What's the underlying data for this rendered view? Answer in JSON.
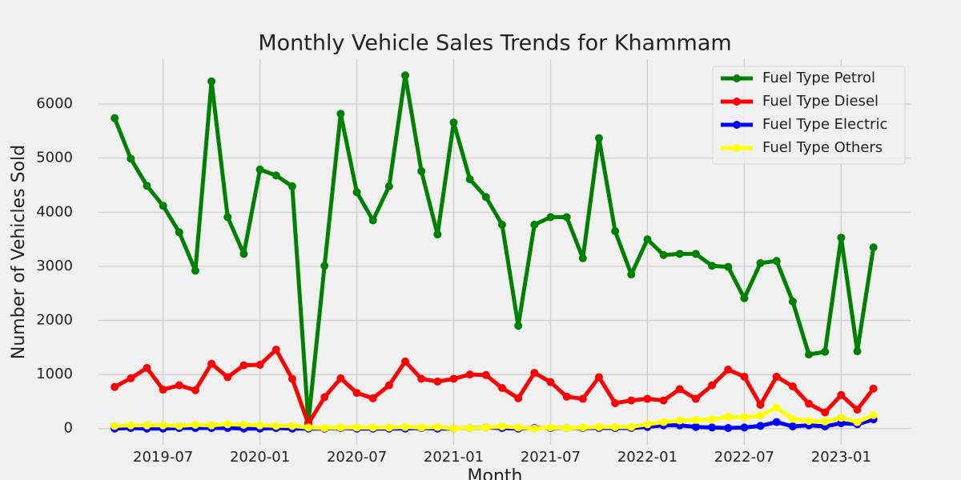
{
  "chart_data": {
    "type": "line",
    "title": "Monthly Vehicle Sales Trends for Khammam",
    "x_label": "Month",
    "y_label": "Number of Vehicles Sold",
    "x": [
      "2019-04",
      "2019-05",
      "2019-06",
      "2019-07",
      "2019-08",
      "2019-09",
      "2019-10",
      "2019-11",
      "2019-12",
      "2020-01",
      "2020-02",
      "2020-03",
      "2020-04",
      "2020-05",
      "2020-06",
      "2020-07",
      "2020-08",
      "2020-09",
      "2020-10",
      "2020-11",
      "2020-12",
      "2021-01",
      "2021-02",
      "2021-03",
      "2021-04",
      "2021-05",
      "2021-06",
      "2021-07",
      "2021-08",
      "2021-09",
      "2021-10",
      "2021-11",
      "2021-12",
      "2022-01",
      "2022-02",
      "2022-03",
      "2022-04",
      "2022-05",
      "2022-06",
      "2022-07",
      "2022-08",
      "2022-09",
      "2022-10",
      "2022-11",
      "2022-12",
      "2023-01",
      "2023-02",
      "2023-03"
    ],
    "series": [
      {
        "name": "Fuel Type Petrol",
        "color": "#008000",
        "values": [
          5740,
          4990,
          4490,
          4120,
          3630,
          2920,
          6420,
          3910,
          3230,
          4790,
          4680,
          4480,
          120,
          3010,
          5820,
          4370,
          3850,
          4480,
          6530,
          4760,
          3590,
          5660,
          4610,
          4280,
          3770,
          1900,
          3770,
          3910,
          3910,
          3150,
          5370,
          3650,
          2850,
          3500,
          3210,
          3230,
          3230,
          3010,
          2990,
          2410,
          3060,
          3100,
          2350,
          1370,
          1420,
          3530,
          1430,
          3350
        ]
      },
      {
        "name": "Fuel Type Diesel",
        "color": "#ff0000",
        "values": [
          770,
          930,
          1120,
          720,
          800,
          710,
          1200,
          950,
          1170,
          1180,
          1460,
          920,
          90,
          580,
          930,
          660,
          560,
          800,
          1240,
          920,
          870,
          920,
          1000,
          990,
          750,
          560,
          1030,
          860,
          590,
          550,
          950,
          470,
          520,
          550,
          520,
          730,
          550,
          800,
          1090,
          960,
          440,
          960,
          780,
          460,
          300,
          620,
          350,
          740
        ]
      },
      {
        "name": "Fuel Type Electric",
        "color": "#0000ff",
        "values": [
          0,
          10,
          0,
          0,
          10,
          10,
          10,
          10,
          0,
          0,
          10,
          0,
          0,
          0,
          10,
          0,
          0,
          0,
          0,
          10,
          0,
          0,
          10,
          20,
          10,
          0,
          10,
          10,
          10,
          10,
          10,
          10,
          10,
          30,
          60,
          60,
          30,
          20,
          10,
          20,
          50,
          120,
          40,
          60,
          40,
          100,
          80,
          170
        ]
      },
      {
        "name": "Fuel Type Others",
        "color": "#ffff00",
        "values": [
          50,
          60,
          60,
          60,
          50,
          70,
          60,
          80,
          70,
          60,
          50,
          50,
          20,
          10,
          20,
          20,
          20,
          20,
          30,
          20,
          30,
          0,
          10,
          20,
          40,
          20,
          0,
          20,
          10,
          20,
          30,
          30,
          30,
          80,
          120,
          150,
          160,
          170,
          220,
          210,
          240,
          390,
          180,
          140,
          130,
          200,
          120,
          250
        ]
      }
    ],
    "xlim": [
      "2019-03",
      "2023-05"
    ],
    "xticks": [
      "2019-07",
      "2020-01",
      "2020-07",
      "2021-01",
      "2021-07",
      "2022-01",
      "2022-07",
      "2023-01"
    ],
    "ylim": [
      -300,
      6830
    ],
    "yticks": [
      0,
      1000,
      2000,
      3000,
      4000,
      5000,
      6000
    ],
    "grid": true,
    "legend": "upper right"
  }
}
